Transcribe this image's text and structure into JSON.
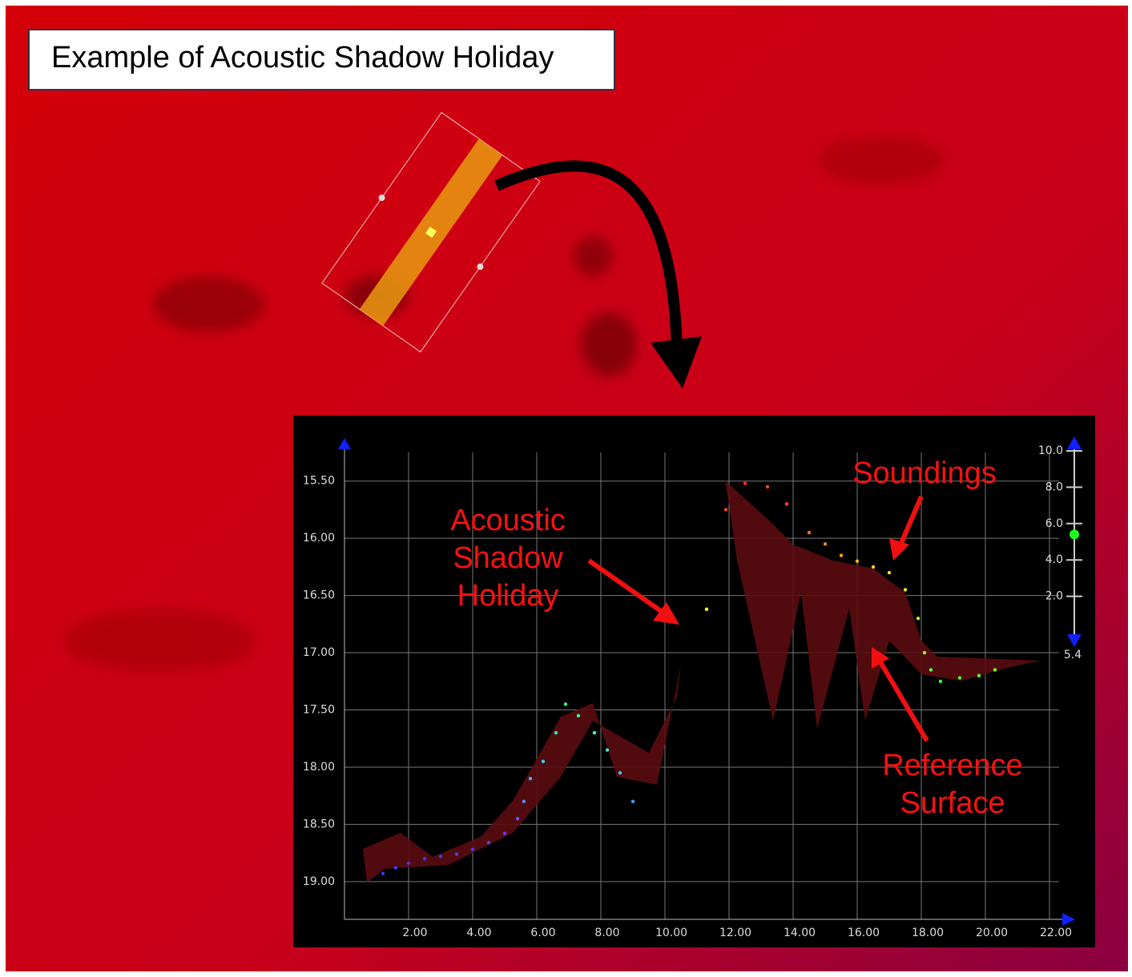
{
  "header": {
    "title": "Example of Acoustic Shadow Holiday"
  },
  "chart_data": {
    "type": "scatter",
    "x": [
      1.2,
      1.6,
      2.0,
      2.5,
      3.0,
      3.5,
      4.0,
      4.5,
      5.0,
      5.4,
      5.6,
      5.8,
      6.2,
      6.6,
      6.9,
      7.3,
      7.8,
      8.2,
      8.6,
      9.0,
      11.3,
      11.9,
      12.5,
      13.2,
      13.8,
      14.5,
      15.0,
      15.5,
      16.0,
      16.5,
      17.0,
      17.5,
      17.9,
      18.1,
      18.3,
      18.6,
      19.2,
      19.8,
      20.3
    ],
    "values": [
      18.93,
      18.88,
      18.84,
      18.8,
      18.78,
      18.76,
      18.72,
      18.66,
      18.58,
      18.45,
      18.3,
      18.1,
      17.95,
      17.7,
      17.45,
      17.55,
      17.7,
      17.85,
      18.05,
      18.3,
      16.62,
      15.75,
      15.52,
      15.55,
      15.7,
      15.95,
      16.05,
      16.15,
      16.2,
      16.25,
      16.3,
      16.45,
      16.7,
      17.0,
      17.15,
      17.25,
      17.22,
      17.2,
      17.15
    ],
    "colors": [
      "#3a3aff",
      "#3a3aff",
      "#3a3aff",
      "#3a3aff",
      "#3a3aff",
      "#4a40ff",
      "#4a40ff",
      "#5a40ff",
      "#6040ff",
      "#7050ff",
      "#5a8cff",
      "#4aa8ff",
      "#3cc8ff",
      "#33e0c0",
      "#30ff70",
      "#30ff90",
      "#40ffb0",
      "#40e0d0",
      "#40c0ff",
      "#40a0ff",
      "#ffff30",
      "#ff4020",
      "#ff3020",
      "#ff4020",
      "#ff5020",
      "#ff7020",
      "#ff8a20",
      "#ffa020",
      "#ffb020",
      "#ffd020",
      "#ffe020",
      "#f0f020",
      "#d0f020",
      "#a0f020",
      "#60ff30",
      "#40ff30",
      "#50ff30",
      "#60ff30",
      "#70ff30"
    ],
    "xlim": [
      0,
      22
    ],
    "xticks": [
      {
        "value": 2,
        "label": "2.00"
      },
      {
        "value": 4,
        "label": "4.00"
      },
      {
        "value": 6,
        "label": "6.00"
      },
      {
        "value": 8,
        "label": "8.00"
      },
      {
        "value": 10,
        "label": "10.00"
      },
      {
        "value": 12,
        "label": "12.00"
      },
      {
        "value": 14,
        "label": "14.00"
      },
      {
        "value": 16,
        "label": "16.00"
      },
      {
        "value": 18,
        "label": "18.00"
      },
      {
        "value": 20,
        "label": "20.00"
      },
      {
        "value": 22,
        "label": "22.00"
      }
    ],
    "ylim": [
      15.25,
      19.33
    ],
    "y_inverted": true,
    "yticks": [
      {
        "value": 15.5,
        "label": "15.50"
      },
      {
        "value": 16,
        "label": "16.00"
      },
      {
        "value": 16.5,
        "label": "16.50"
      },
      {
        "value": 17,
        "label": "17.00"
      },
      {
        "value": 17.5,
        "label": "17.50"
      },
      {
        "value": 18,
        "label": "18.00"
      },
      {
        "value": 18.5,
        "label": "18.50"
      },
      {
        "value": 19,
        "label": "19.00"
      }
    ],
    "grid": true,
    "annotations": {
      "shadow": [
        "Acoustic",
        "Shadow",
        "Holiday"
      ],
      "soundings": [
        "Soundings"
      ],
      "reference": [
        "Reference",
        "Surface"
      ]
    },
    "color_scale": {
      "lim": [
        0,
        10
      ],
      "ticks": [
        {
          "value": 10,
          "label": "10.0"
        },
        {
          "value": 8,
          "label": "8.0"
        },
        {
          "value": 6,
          "label": "6.0"
        },
        {
          "value": 4,
          "label": "4.0"
        },
        {
          "value": 2,
          "label": "2.0"
        }
      ],
      "current": 5.4
    }
  }
}
